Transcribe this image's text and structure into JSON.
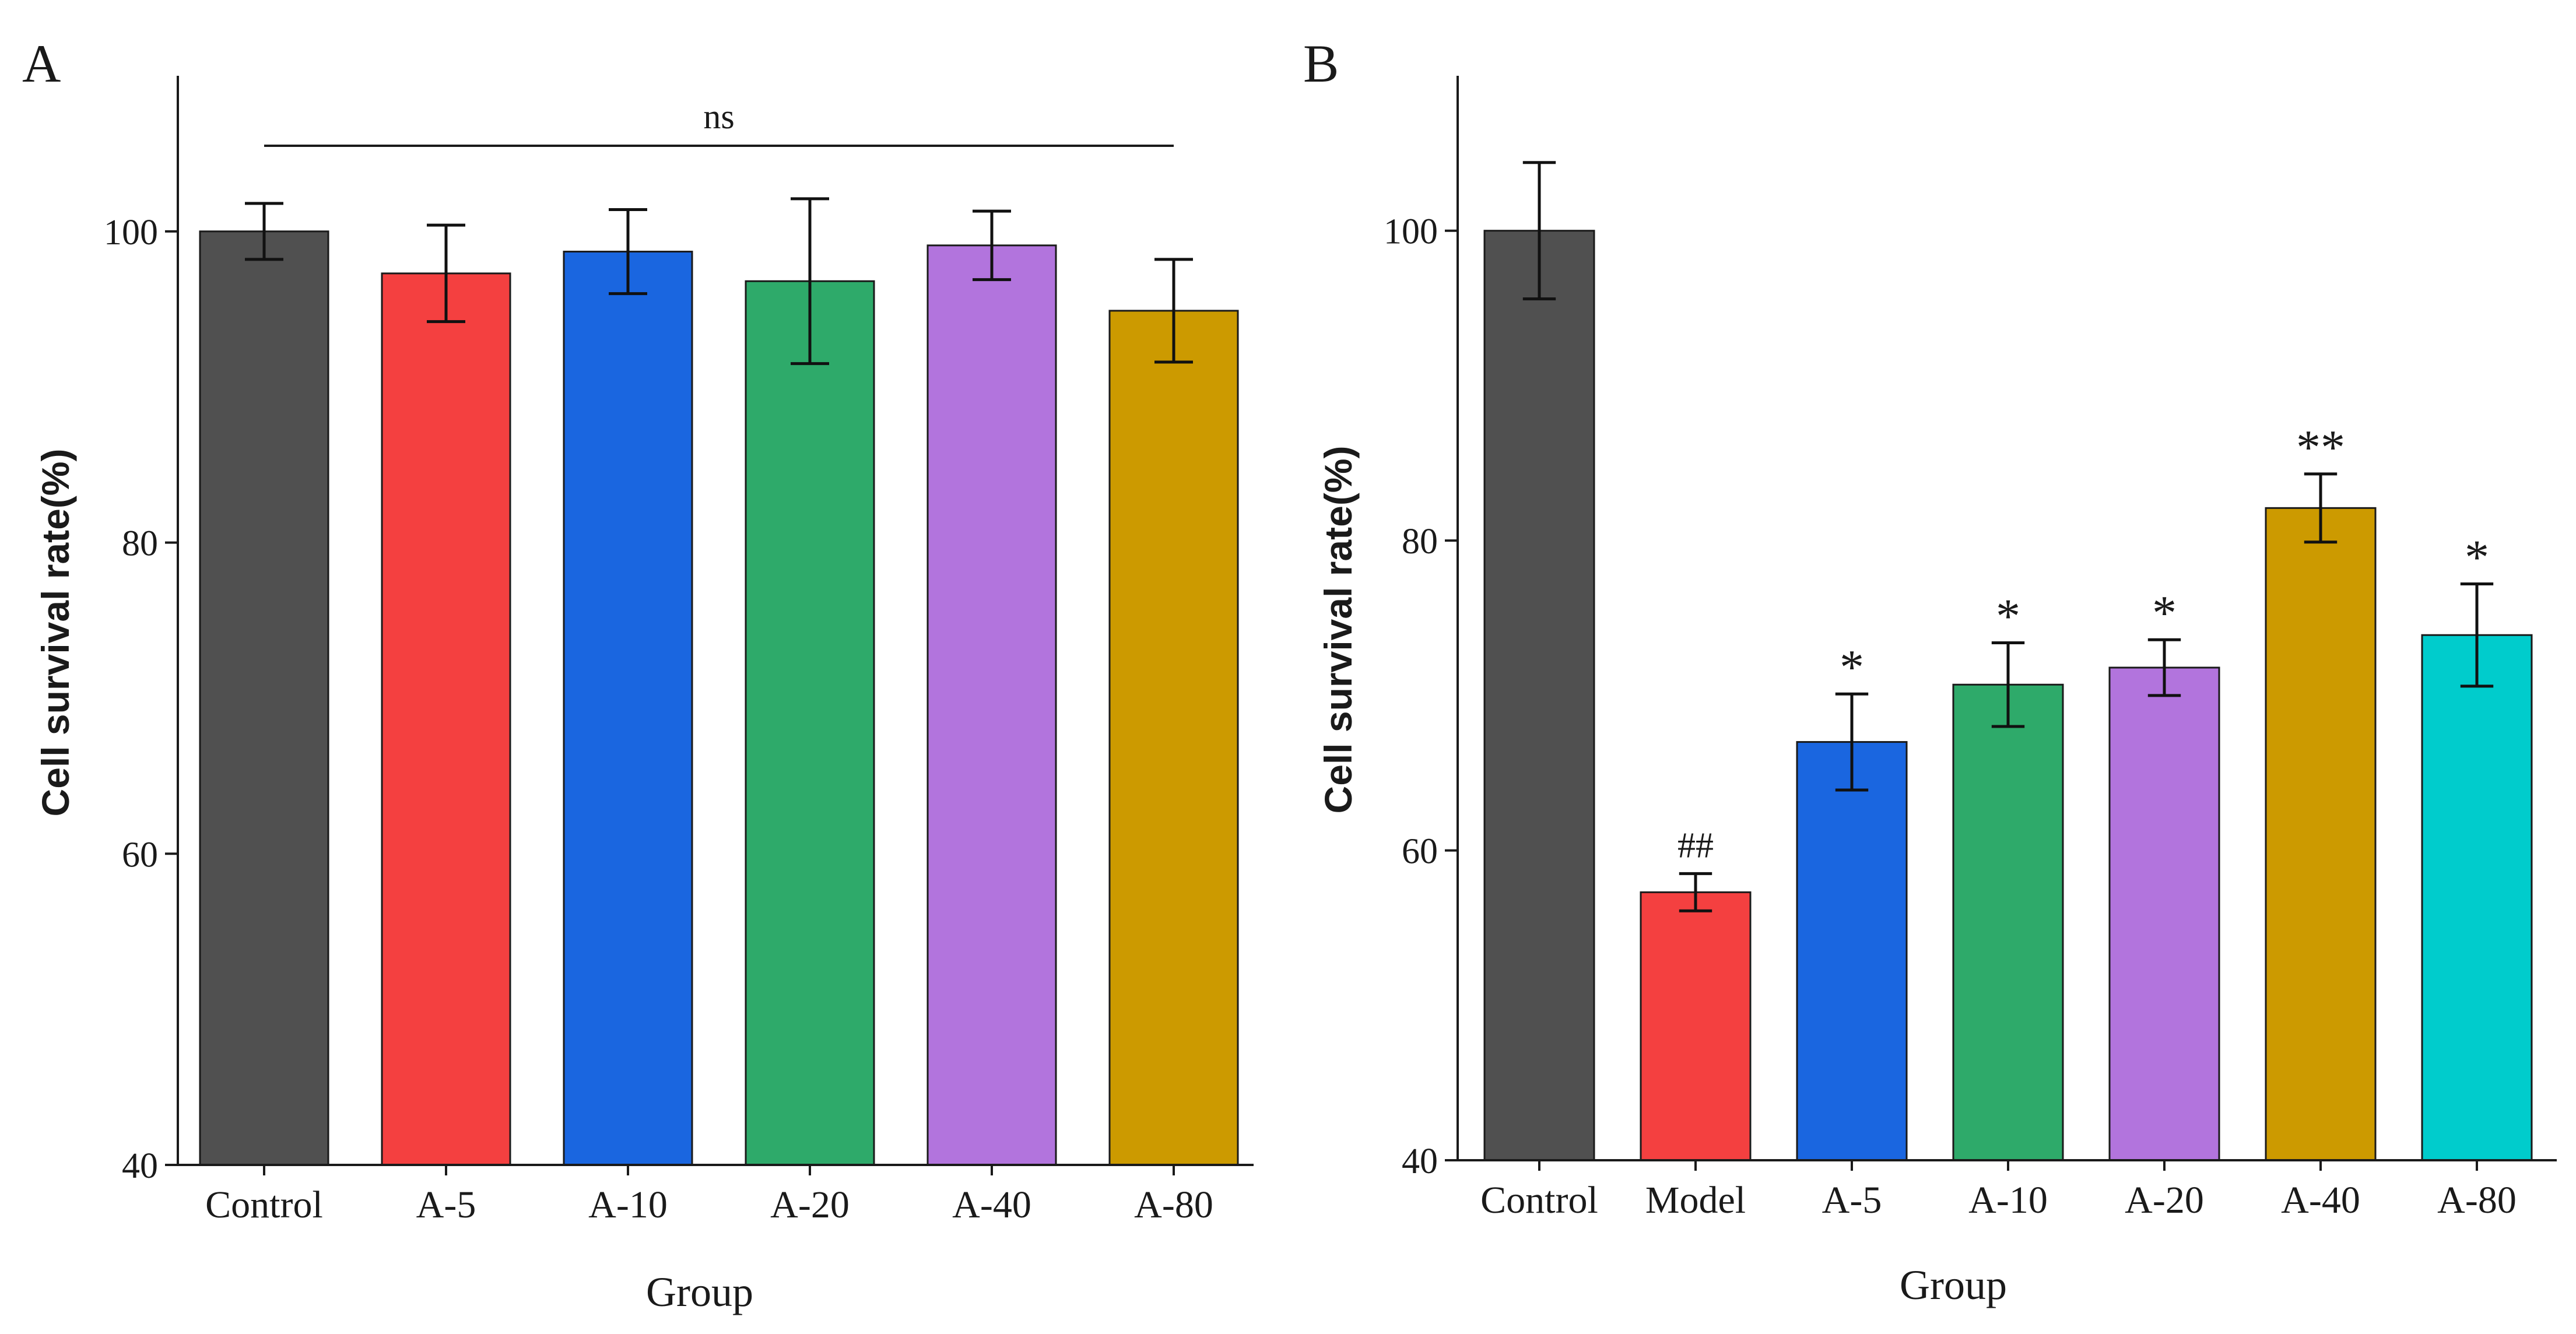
{
  "panels": [
    {
      "panel_label": "A",
      "colors": [
        "#505050",
        "#f44040",
        "#1a66e0",
        "#2eaa6a",
        "#b274dd",
        "#cc9a00"
      ],
      "sig_labels": [
        "",
        "",
        "",
        "",
        "",
        ""
      ],
      "bracket_label": "ns",
      "chart_data": {
        "type": "bar",
        "categories": [
          "Control",
          "A-5",
          "A-10",
          "A-20",
          "A-40",
          "A-80"
        ],
        "values": [
          100,
          97.3,
          98.7,
          96.8,
          99.1,
          94.9
        ],
        "errors": [
          1.8,
          3.1,
          2.7,
          5.3,
          2.2,
          3.3
        ],
        "title": "",
        "xlabel": "Group",
        "ylabel": "Cell survival rate(%)",
        "ylim": [
          40,
          110
        ],
        "yticks": [
          40,
          60,
          80,
          100
        ]
      }
    },
    {
      "panel_label": "B",
      "colors": [
        "#505050",
        "#f44040",
        "#1a66e0",
        "#2eaa6a",
        "#b274dd",
        "#cc9a00",
        "#00cccc"
      ],
      "sig_labels": [
        "",
        "##",
        "*",
        "*",
        "*",
        "**",
        "*"
      ],
      "bracket_label": "",
      "chart_data": {
        "type": "bar",
        "categories": [
          "Control",
          "Model",
          "A-5",
          "A-10",
          "A-20",
          "A-40",
          "A-80"
        ],
        "values": [
          100,
          57.3,
          67,
          70.7,
          71.8,
          82.1,
          73.9
        ],
        "errors": [
          4.4,
          1.2,
          3.1,
          2.7,
          1.8,
          2.2,
          3.3
        ],
        "title": "",
        "xlabel": "Group",
        "ylabel": "Cell survival rate(%)",
        "ylim": [
          40,
          110
        ],
        "yticks": [
          40,
          60,
          80,
          100
        ]
      }
    }
  ]
}
